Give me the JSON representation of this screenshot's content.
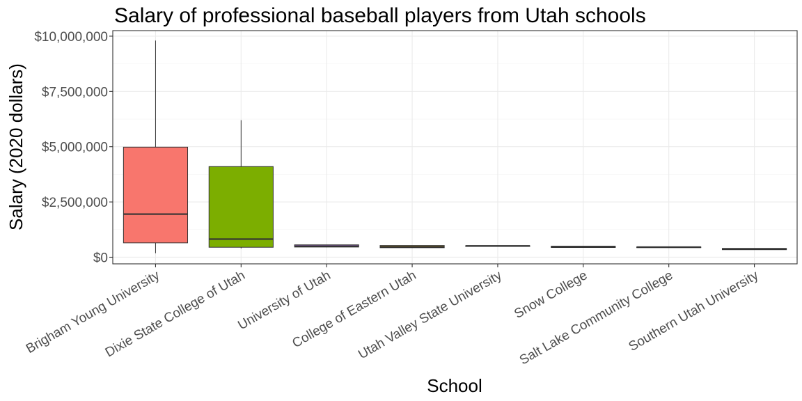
{
  "chart_data": {
    "type": "boxplot",
    "title": "Salary of professional baseball players from Utah schools",
    "xlabel": "School",
    "ylabel": "Salary (2020 dollars)",
    "ylim": [
      -300000,
      10250000
    ],
    "yticks": [
      {
        "value": 0,
        "label": "$0"
      },
      {
        "value": 2500000,
        "label": "$2,500,000"
      },
      {
        "value": 5000000,
        "label": "$5,000,000"
      },
      {
        "value": 7500000,
        "label": "$7,500,000"
      },
      {
        "value": 10000000,
        "label": "$10,000,000"
      }
    ],
    "grid": true,
    "legend": "none",
    "categories": [
      "Brigham Young University",
      "Dixie State College of Utah",
      "University of Utah",
      "College of Eastern Utah",
      "Utah Valley State University",
      "Snow College",
      "Salt Lake Community College",
      "Southern Utah University"
    ],
    "colors": [
      "#F8766D",
      "#7CAE00",
      "#C77CFF",
      "#CD9600",
      "#00BFC4",
      "#00C08B",
      "#00A9FF",
      "#FF61CC"
    ],
    "boxes": [
      {
        "min": 180000,
        "q1": 650000,
        "median": 1950000,
        "q3": 4980000,
        "max": 9800000
      },
      {
        "min": 400000,
        "q1": 450000,
        "median": 820000,
        "q3": 4100000,
        "max": 6200000
      },
      {
        "min": 450000,
        "q1": 460000,
        "median": 500000,
        "q3": 560000,
        "max": 560000
      },
      {
        "min": 420000,
        "q1": 430000,
        "median": 470000,
        "q3": 530000,
        "max": 530000
      },
      {
        "min": 505000,
        "q1": 505000,
        "median": 510000,
        "q3": 520000,
        "max": 520000
      },
      {
        "min": 430000,
        "q1": 440000,
        "median": 470000,
        "q3": 500000,
        "max": 500000
      },
      {
        "min": 440000,
        "q1": 445000,
        "median": 455000,
        "q3": 465000,
        "max": 465000
      },
      {
        "min": 330000,
        "q1": 340000,
        "median": 370000,
        "q3": 400000,
        "max": 400000
      }
    ]
  }
}
